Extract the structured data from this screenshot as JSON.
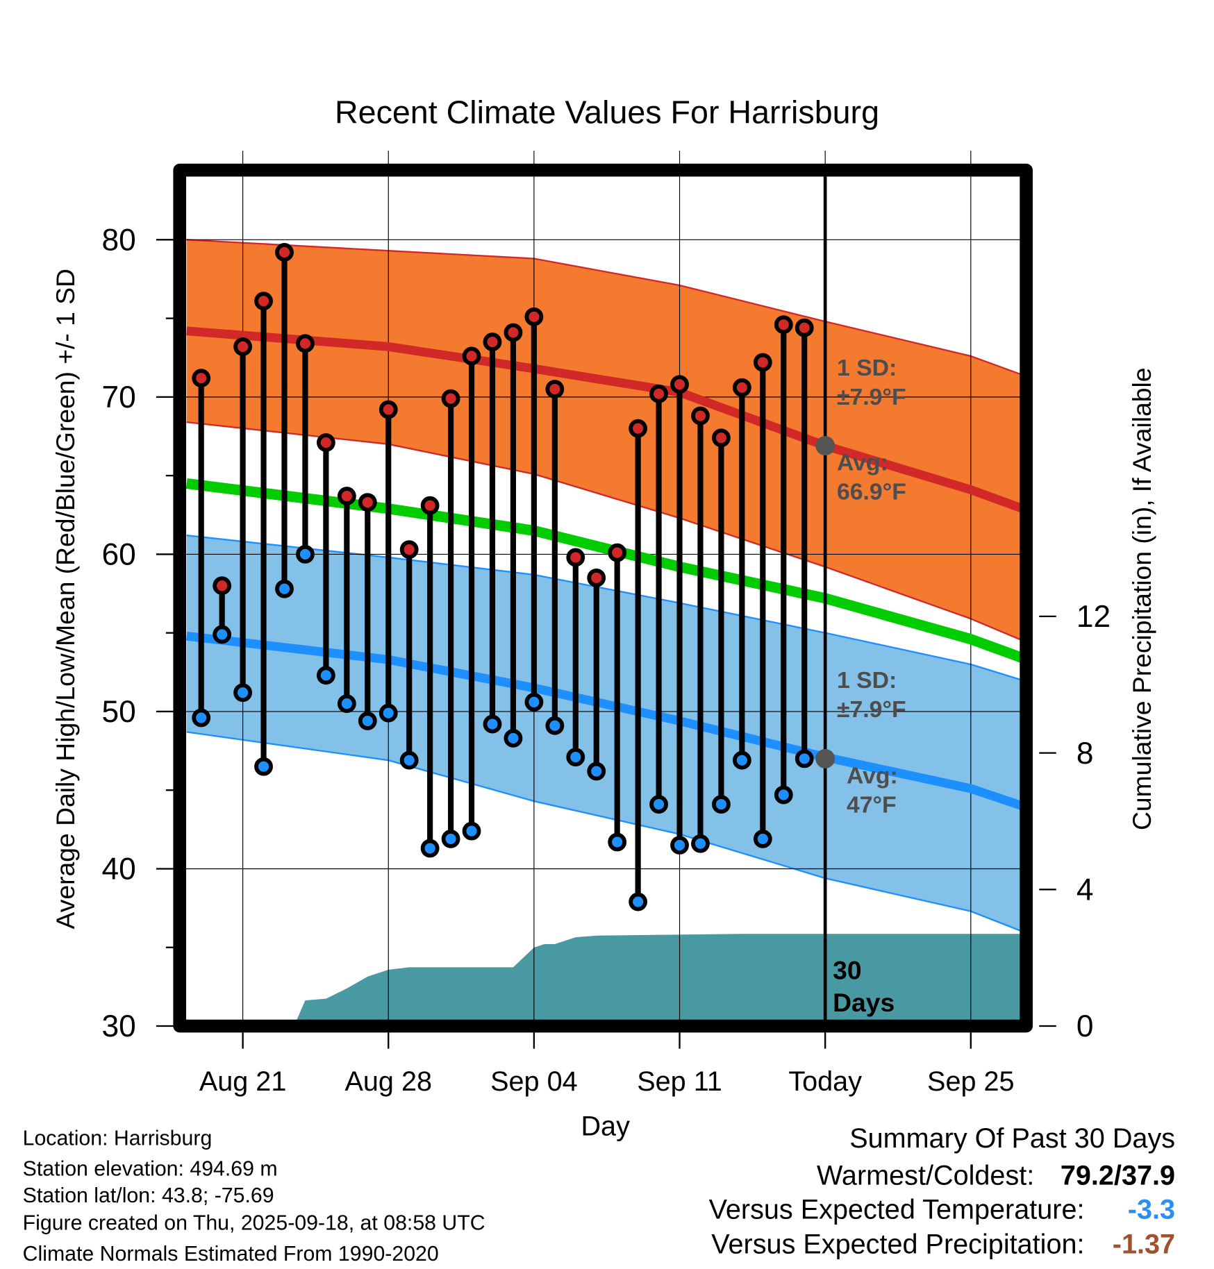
{
  "chart_data": {
    "type": "line",
    "title": "Recent Climate Values For Harrisburg",
    "xlabel": "Day",
    "ylabel": "Average Daily High/Low/Mean (Red/Blue/Green) +/- 1 SD",
    "y2label": "Cumulative Precipitation (in), If Available",
    "ylim": [
      30,
      80
    ],
    "y2lim": [
      0,
      14.5
    ],
    "yticks": [
      "30",
      "40",
      "50",
      "60",
      "70",
      "80"
    ],
    "y2ticks": [
      "0",
      "4",
      "8",
      "12"
    ],
    "xticks": [
      {
        "date": "2025-08-21",
        "label": "Aug 21"
      },
      {
        "date": "2025-08-28",
        "label": "Aug 28"
      },
      {
        "date": "2025-09-04",
        "label": "Sep 04"
      },
      {
        "date": "2025-09-11",
        "label": "Sep 11"
      },
      {
        "date": "2025-09-18",
        "label": "Today"
      },
      {
        "date": "2025-09-25",
        "label": "Sep 25"
      }
    ],
    "xrange": [
      "2025-08-18.3",
      "2025-09-27.7"
    ],
    "today": "2025-09-18",
    "grid": true,
    "observed": {
      "dates": [
        "08-19",
        "08-20",
        "08-21",
        "08-22",
        "08-23",
        "08-24",
        "08-25",
        "08-26",
        "08-27",
        "08-28",
        "08-29",
        "08-30",
        "08-31",
        "09-01",
        "09-02",
        "09-03",
        "09-04",
        "09-05",
        "09-06",
        "09-07",
        "09-08",
        "09-09",
        "09-10",
        "09-11",
        "09-12",
        "09-13",
        "09-14",
        "09-15",
        "09-16",
        "09-17"
      ],
      "high": [
        71.2,
        58.0,
        73.2,
        76.1,
        79.2,
        73.4,
        67.1,
        63.7,
        63.3,
        69.2,
        60.3,
        63.1,
        69.9,
        72.6,
        73.5,
        74.1,
        75.1,
        70.5,
        59.8,
        58.5,
        60.1,
        68.0,
        70.2,
        70.8,
        68.8,
        67.4,
        70.6,
        72.2,
        74.6,
        74.4
      ],
      "low": [
        49.6,
        54.9,
        51.2,
        46.5,
        57.8,
        60.0,
        52.3,
        50.5,
        49.4,
        49.9,
        46.9,
        41.3,
        41.9,
        42.4,
        49.2,
        48.3,
        50.6,
        49.1,
        47.1,
        46.2,
        41.7,
        37.9,
        44.1,
        41.5,
        41.6,
        44.1,
        46.9,
        41.9,
        44.7,
        47.0
      ]
    },
    "normals": {
      "days_from_aug21": [
        -2.7,
        7,
        14,
        21,
        28,
        35,
        37.7
      ],
      "high_upper": [
        80.0,
        79.3,
        78.8,
        77.1,
        74.8,
        72.6,
        71.3
      ],
      "high_mean": [
        74.2,
        73.2,
        71.8,
        70.3,
        66.9,
        64.1,
        62.8
      ],
      "high_lower": [
        68.4,
        67.0,
        65.1,
        62.3,
        59.2,
        55.9,
        54.4
      ],
      "mean": [
        64.5,
        62.9,
        61.5,
        59.2,
        57.2,
        54.6,
        53.3
      ],
      "low_upper": [
        61.2,
        59.8,
        58.7,
        56.9,
        55.0,
        53.0,
        51.9
      ],
      "low_mean": [
        54.8,
        53.3,
        51.5,
        49.4,
        47.1,
        45.1,
        43.9
      ],
      "low_lower": [
        48.7,
        46.9,
        44.3,
        42.2,
        39.4,
        37.3,
        35.9
      ]
    },
    "precip": {
      "days_from_aug21": [
        -2.7,
        2,
        2.5,
        3,
        4,
        5,
        6,
        7,
        8,
        13,
        14,
        14.5,
        15,
        16,
        17,
        24,
        37.7
      ],
      "cumulative": [
        0,
        0,
        0.05,
        0.75,
        0.8,
        1.1,
        1.45,
        1.65,
        1.72,
        1.72,
        2.3,
        2.4,
        2.4,
        2.6,
        2.65,
        2.7,
        2.7
      ]
    },
    "annotations": {
      "high_sd_label": "1 SD:",
      "high_sd_value": "±7.9°F",
      "high_avg_label": "Avg:",
      "high_avg_value": "66.9°F",
      "low_sd_label": "1 SD:",
      "low_sd_value": "±7.9°F",
      "low_avg_label": "Avg:",
      "low_avg_value": "47°F",
      "days_count": "30",
      "days_word": "Days"
    },
    "colors": {
      "high_band": "#F47A30",
      "high_line": "#D12828",
      "mean_line": "#00CC00",
      "low_band": "#84C1E8",
      "low_line": "#1E8FFF",
      "precip": "#4899A2",
      "label_gray": "#4D4D4D"
    }
  },
  "footer": {
    "location": "Location: Harrisburg",
    "elevation": "Station elevation: 494.69 m",
    "latlon": "Station lat/lon: 43.8; -75.69",
    "created": "Figure created on Thu, 2025-09-18, at 08:58 UTC",
    "normals": "Climate Normals Estimated From 1990-2020"
  },
  "summary": {
    "title": "Summary Of Past 30 Days",
    "warmest_label": "Warmest/Coldest:",
    "warmest_value": "79.2/37.9",
    "temp_label": "Versus Expected Temperature:",
    "temp_value": "-3.3",
    "temp_color": "#2A8FF0",
    "precip_label": "Versus Expected Precipitation:",
    "precip_value": "-1.37",
    "precip_color": "#A0522D"
  }
}
